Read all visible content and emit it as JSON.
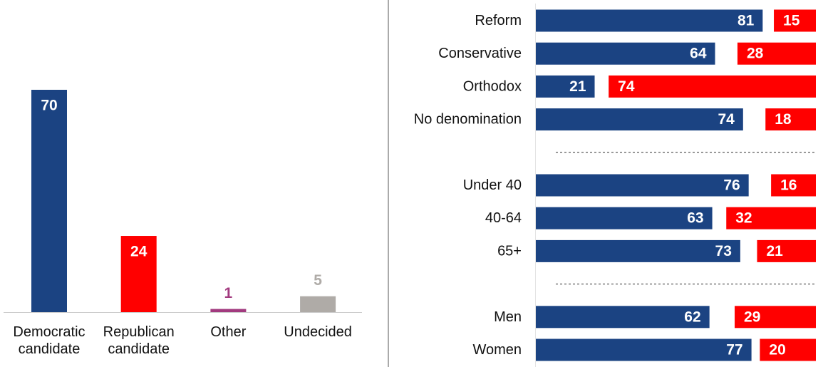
{
  "chart_data": [
    {
      "type": "bar",
      "categories": [
        "Democratic candidate",
        "Republican candidate",
        "Other",
        "Undecided"
      ],
      "values": [
        70,
        24,
        1,
        5
      ],
      "colors": [
        "#1b4382",
        "#ff0000",
        "#a23a7f",
        "#afaba7"
      ]
    },
    {
      "type": "diverging-bar",
      "categories": [
        "Reform",
        "Conservative",
        "Orthodox",
        "No denomination",
        null,
        "Under 40",
        "40-64",
        "65+",
        null,
        "Men",
        "Women"
      ],
      "xlim": [
        0,
        100
      ],
      "series": [
        {
          "color": "#1b4382",
          "values": [
            81,
            64,
            21,
            74,
            null,
            76,
            63,
            73,
            null,
            62,
            77
          ]
        },
        {
          "color": "#ff0000",
          "values": [
            15,
            28,
            74,
            18,
            null,
            16,
            32,
            21,
            null,
            29,
            20
          ]
        }
      ]
    }
  ]
}
